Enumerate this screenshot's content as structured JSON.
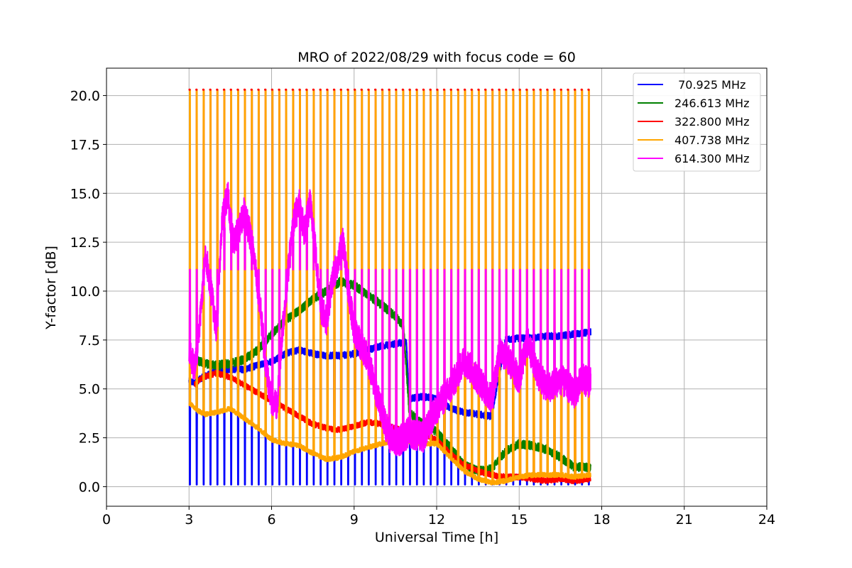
{
  "chart_data": {
    "type": "line",
    "title": "MRO of 2022/08/29 with focus code = 60",
    "xlabel": "Universal Time [h]",
    "ylabel": "Y-factor [dB]",
    "xlim": [
      0,
      24
    ],
    "ylim": [
      -1.0,
      21.4
    ],
    "x_ticks": [
      0,
      3,
      6,
      9,
      12,
      15,
      18,
      21,
      24
    ],
    "y_ticks": [
      0.0,
      2.5,
      5.0,
      7.5,
      10.0,
      12.5,
      15.0,
      17.5,
      20.0
    ],
    "x_tick_labels": [
      "0",
      "3",
      "6",
      "9",
      "12",
      "15",
      "18",
      "21",
      "24"
    ],
    "y_tick_labels": [
      "0.0",
      "2.5",
      "5.0",
      "7.5",
      "10.0",
      "12.5",
      "15.0",
      "17.5",
      "20.0"
    ],
    "grid": true,
    "legend_position": "top-right",
    "calibration_interval_h": 0.25,
    "time_range_h": [
      3.0,
      17.6
    ],
    "series": [
      {
        "name": " 70.925 MHz",
        "color": "#0000ff",
        "x": [
          3.0,
          3.2,
          3.5,
          4.0,
          4.5,
          5.0,
          5.5,
          6.0,
          6.5,
          7.0,
          7.5,
          8.0,
          8.5,
          9.0,
          9.5,
          10.0,
          10.5,
          10.9,
          11.0,
          11.5,
          12.0,
          12.3,
          12.5,
          13.0,
          13.5,
          14.0,
          14.5,
          15.0,
          15.5,
          16.0,
          16.5,
          17.0,
          17.6
        ],
        "values": [
          5.4,
          5.3,
          5.6,
          5.9,
          6.0,
          6.0,
          6.2,
          6.4,
          6.8,
          7.0,
          6.8,
          6.7,
          6.7,
          6.8,
          7.0,
          7.2,
          7.3,
          7.4,
          4.5,
          4.6,
          4.5,
          4.2,
          4.0,
          3.8,
          3.7,
          3.6,
          7.5,
          7.6,
          7.6,
          7.7,
          7.7,
          7.8,
          7.9
        ],
        "calibration_dips": [
          0.1,
          0.1,
          0.1,
          0.1,
          0.1,
          0.1,
          0.1,
          0.0,
          0.1,
          0.1,
          0.1,
          0.1,
          0.1,
          0.1,
          0.1,
          0.1,
          0.1,
          0.1,
          0.1,
          0.1,
          0.1,
          0.1,
          0.1,
          0.1,
          0.1,
          0.1,
          0.1,
          0.1,
          0.1,
          0.1,
          0.1,
          0.0,
          0.1
        ]
      },
      {
        "name": "246.613 MHz",
        "color": "#008000",
        "x": [
          3.2,
          3.6,
          4.0,
          4.5,
          5.0,
          5.5,
          6.0,
          6.5,
          7.0,
          7.5,
          8.0,
          8.5,
          9.0,
          9.5,
          10.0,
          10.5,
          10.8,
          11.0,
          11.5,
          12.0,
          12.5,
          13.0,
          13.5,
          14.0,
          14.5,
          15.0,
          15.5,
          16.0,
          16.5,
          17.0,
          17.6
        ],
        "values": [
          6.5,
          6.3,
          6.2,
          6.3,
          6.5,
          7.0,
          7.8,
          8.5,
          9.0,
          9.6,
          10.0,
          10.5,
          10.3,
          9.8,
          9.3,
          8.7,
          8.2,
          3.8,
          3.2,
          2.8,
          2.0,
          1.1,
          0.8,
          0.9,
          1.8,
          2.2,
          2.1,
          1.9,
          1.5,
          1.0,
          1.0
        ]
      },
      {
        "name": "322.800 MHz",
        "color": "#ff0000",
        "x": [
          3.2,
          3.5,
          4.0,
          4.5,
          5.0,
          5.5,
          6.0,
          6.5,
          7.0,
          7.5,
          8.0,
          8.5,
          9.0,
          9.5,
          10.0,
          10.5,
          11.0,
          11.5,
          12.0,
          12.5,
          13.0,
          13.5,
          14.0,
          14.5,
          15.0,
          15.5,
          16.0,
          16.5,
          17.0,
          17.6
        ],
        "values": [
          5.2,
          5.6,
          5.8,
          5.6,
          5.2,
          4.8,
          4.4,
          4.0,
          3.6,
          3.2,
          3.0,
          2.9,
          3.1,
          3.3,
          3.2,
          3.0,
          2.8,
          2.7,
          2.4,
          1.7,
          1.1,
          0.8,
          0.6,
          0.5,
          0.5,
          0.4,
          0.3,
          0.4,
          0.3,
          0.4
        ],
        "calibration_peak": 20.3
      },
      {
        "name": "407.738 MHz",
        "color": "#ffa500",
        "x": [
          3.0,
          3.3,
          3.6,
          4.0,
          4.5,
          5.0,
          5.5,
          6.0,
          6.5,
          7.0,
          7.5,
          8.0,
          8.5,
          9.0,
          9.5,
          10.0,
          10.5,
          11.0,
          11.5,
          12.0,
          12.5,
          13.0,
          13.5,
          14.0,
          14.5,
          15.0,
          15.5,
          16.0,
          16.5,
          17.0,
          17.6
        ],
        "values": [
          4.3,
          3.9,
          3.7,
          3.8,
          4.0,
          3.5,
          3.0,
          2.4,
          2.2,
          2.1,
          1.7,
          1.4,
          1.5,
          1.8,
          2.0,
          2.2,
          2.4,
          2.3,
          2.2,
          2.2,
          1.5,
          0.8,
          0.4,
          0.2,
          0.3,
          0.5,
          0.6,
          0.6,
          0.6,
          0.5,
          0.6
        ],
        "calibration_peak": 20.3
      },
      {
        "name": "614.300 MHz",
        "color": "#ff00ff",
        "x": [
          3.0,
          3.2,
          3.4,
          3.6,
          3.8,
          4.0,
          4.2,
          4.4,
          4.6,
          4.8,
          5.0,
          5.2,
          5.4,
          5.6,
          5.8,
          6.0,
          6.2,
          6.4,
          6.6,
          6.8,
          7.0,
          7.2,
          7.4,
          7.6,
          7.8,
          8.0,
          8.2,
          8.4,
          8.6,
          8.8,
          9.0,
          9.5,
          10.0,
          10.3,
          10.6,
          11.0,
          11.5,
          12.0,
          12.5,
          13.0,
          13.5,
          14.0,
          14.3,
          14.6,
          15.0,
          15.3,
          15.6,
          16.0,
          16.5,
          17.0,
          17.3,
          17.6
        ],
        "values": [
          7.0,
          6.0,
          8.5,
          12.0,
          10.0,
          8.0,
          13.5,
          15.0,
          12.5,
          13.0,
          14.0,
          13.0,
          11.5,
          9.0,
          6.0,
          4.5,
          4.0,
          8.0,
          11.0,
          13.5,
          14.5,
          13.0,
          14.5,
          12.0,
          9.0,
          8.5,
          10.5,
          11.5,
          12.5,
          10.0,
          8.0,
          6.5,
          3.8,
          2.5,
          2.3,
          2.8,
          2.5,
          4.0,
          5.0,
          6.5,
          5.5,
          4.5,
          7.0,
          6.5,
          5.5,
          7.5,
          6.0,
          5.0,
          5.5,
          4.8,
          5.5,
          5.3
        ],
        "calibration_peak": 11.1
      }
    ]
  }
}
